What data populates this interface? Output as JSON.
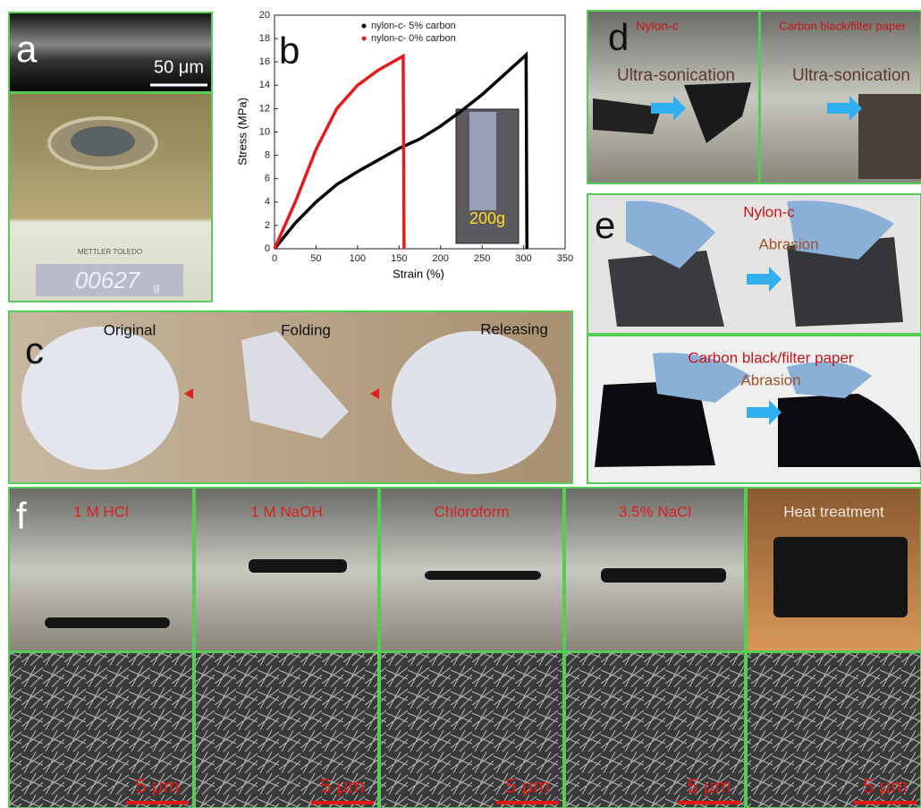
{
  "chart_data": {
    "type": "line",
    "panel_label": "b",
    "x_label": "Strain (%)",
    "y_label": "Stress (MPa)",
    "xlim": [
      0,
      350
    ],
    "xticks": [
      0,
      50,
      100,
      150,
      200,
      250,
      300,
      350
    ],
    "ylim": [
      0,
      20
    ],
    "yticks": [
      0,
      2,
      4,
      6,
      8,
      10,
      12,
      14,
      16,
      18,
      20
    ],
    "legend": "upper left",
    "inset_label": "200g",
    "series": [
      {
        "name": "nylon-c- 5% carbon",
        "color": "#000000",
        "x": [
          0,
          25,
          50,
          75,
          100,
          125,
          150,
          175,
          200,
          225,
          250,
          275,
          300,
          303,
          304
        ],
        "values": [
          0,
          2.2,
          4,
          5.5,
          6.6,
          7.6,
          8.6,
          9.4,
          10.5,
          11.8,
          13.2,
          14.8,
          16.4,
          16.6,
          0
        ]
      },
      {
        "name": "nylon-c- 0% carbon",
        "color": "#e8191a",
        "x": [
          0,
          25,
          50,
          75,
          100,
          125,
          150,
          155,
          156
        ],
        "values": [
          0,
          4,
          8.5,
          12,
          14,
          15.3,
          16.3,
          16.5,
          0
        ]
      }
    ]
  },
  "panels": {
    "a": {
      "label": "a",
      "scale_bar": "50 μm",
      "brand": "METTLER TOLEDO",
      "reading": "00627",
      "unit": "g"
    },
    "c": {
      "label": "c",
      "steps": [
        "Original",
        "Folding",
        "Releasing"
      ]
    },
    "d": {
      "label": "d",
      "left_title": "Nylon-c",
      "left_action": "Ultra-sonication",
      "right_title": "Carbon black/filter paper",
      "right_action": "Ultra-sonication"
    },
    "e": {
      "label": "e",
      "top_title": "Nylon-c",
      "top_action": "Abrasion",
      "bottom_title": "Carbon black/filter paper",
      "bottom_action": "Abrasion"
    },
    "f": {
      "label": "f",
      "conditions": [
        "1 M HCl",
        "1 M NaOH",
        "Chloroform",
        "3.5% NaCl",
        "Heat treatment"
      ],
      "scale_bars": [
        "5 μm",
        "5 μm",
        "5 μm",
        "5 μm",
        "5 μm"
      ]
    }
  }
}
